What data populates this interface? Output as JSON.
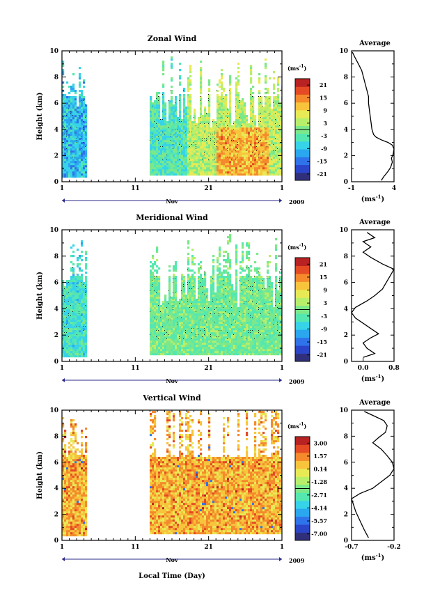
{
  "chart_data": [
    {
      "type": "heatmap",
      "title": "Zonal Wind",
      "xlabel": "",
      "ylabel": "Height (km)",
      "xlim": [
        1,
        31
      ],
      "ylim": [
        0,
        10
      ],
      "xticks": [
        "1",
        "11",
        "21",
        "1"
      ],
      "yticks": [
        "0",
        "2",
        "4",
        "6",
        "8",
        "10"
      ],
      "month_label": "Nov",
      "year_label": "2009",
      "data_gap_days": [
        4.2,
        12.7
      ],
      "colorbar": {
        "unit": "(ms",
        "unit_exp": "-1",
        "unit_close": ")",
        "ticks": [
          "21",
          "15",
          "9",
          "3",
          "-3",
          "-9",
          "-15",
          "-21"
        ],
        "min": -24,
        "max": 24
      },
      "average": {
        "title": "Average",
        "xlabel": "(ms",
        "xlabel_exp": "-1",
        "xlabel_close": ")",
        "xticks": [
          "-1",
          "4"
        ],
        "xlim": [
          -1,
          4
        ],
        "profile": [
          [
            2.5,
            0.1
          ],
          [
            2.8,
            0.4
          ],
          [
            3.3,
            0.8
          ],
          [
            3.6,
            1.1
          ],
          [
            3.8,
            1.5
          ],
          [
            3.7,
            1.8
          ],
          [
            3.9,
            2.1
          ],
          [
            4.0,
            2.5
          ],
          [
            3.8,
            2.8
          ],
          [
            3.3,
            3.0
          ],
          [
            2.5,
            3.2
          ],
          [
            1.9,
            3.4
          ],
          [
            1.6,
            3.6
          ],
          [
            1.4,
            4.0
          ],
          [
            1.3,
            4.5
          ],
          [
            1.2,
            5.0
          ],
          [
            1.1,
            5.5
          ],
          [
            1.0,
            6.0
          ],
          [
            1.0,
            6.5
          ],
          [
            0.8,
            7.0
          ],
          [
            0.6,
            7.5
          ],
          [
            0.4,
            8.0
          ],
          [
            0.2,
            8.5
          ],
          [
            -0.2,
            9.0
          ],
          [
            -0.6,
            9.5
          ],
          [
            -0.9,
            9.9
          ]
        ]
      }
    },
    {
      "type": "heatmap",
      "title": "Meridional Wind",
      "xlabel": "",
      "ylabel": "Height (km)",
      "xlim": [
        1,
        31
      ],
      "ylim": [
        0,
        10
      ],
      "xticks": [
        "1",
        "11",
        "21",
        "1"
      ],
      "yticks": [
        "0",
        "2",
        "4",
        "6",
        "8",
        "10"
      ],
      "month_label": "Nov",
      "year_label": "2009",
      "data_gap_days": [
        4.2,
        12.7
      ],
      "colorbar": {
        "unit": "(ms",
        "unit_exp": "-1",
        "unit_close": ")",
        "ticks": [
          "21",
          "15",
          "9",
          "3",
          "-3",
          "-9",
          "-15",
          "-21"
        ],
        "min": -24,
        "max": 24
      },
      "average": {
        "title": "Average",
        "xlabel": "(ms",
        "xlabel_exp": "-1",
        "xlabel_close": ")",
        "xticks": [
          "0.0",
          "0.8"
        ],
        "xlim": [
          -0.3,
          0.8
        ],
        "profile": [
          [
            0.0,
            0.3
          ],
          [
            0.3,
            0.6
          ],
          [
            0.1,
            1.0
          ],
          [
            0.0,
            1.4
          ],
          [
            0.2,
            1.8
          ],
          [
            0.4,
            2.1
          ],
          [
            0.2,
            2.5
          ],
          [
            0.0,
            2.9
          ],
          [
            -0.2,
            3.3
          ],
          [
            -0.3,
            3.7
          ],
          [
            -0.2,
            4.1
          ],
          [
            0.1,
            4.6
          ],
          [
            0.3,
            5.0
          ],
          [
            0.5,
            5.5
          ],
          [
            0.6,
            6.0
          ],
          [
            0.7,
            6.5
          ],
          [
            0.8,
            7.0
          ],
          [
            0.5,
            7.4
          ],
          [
            0.2,
            7.9
          ],
          [
            0.0,
            8.3
          ],
          [
            0.2,
            8.7
          ],
          [
            0.0,
            9.1
          ],
          [
            0.3,
            9.4
          ],
          [
            0.1,
            9.8
          ]
        ]
      }
    },
    {
      "type": "heatmap",
      "title": "Vertical Wind",
      "xlabel": "Local Time (Day)",
      "ylabel": "Height (km)",
      "xlim": [
        1,
        31
      ],
      "ylim": [
        0,
        10
      ],
      "xticks": [
        "1",
        "11",
        "21",
        "1"
      ],
      "yticks": [
        "0",
        "2",
        "4",
        "6",
        "8",
        "10"
      ],
      "month_label": "Nov",
      "year_label": "2009",
      "data_gap_days": [
        4.2,
        12.7
      ],
      "colorbar": {
        "unit": "(ms",
        "unit_exp": "-1",
        "unit_close": ")",
        "ticks": [
          "3.00",
          "1.57",
          "0.14",
          "-1.28",
          "-2.71",
          "-4.14",
          "-5.57",
          "-7.00"
        ],
        "min": -7.8,
        "max": 3.8
      },
      "average": {
        "title": "Average",
        "xlabel": "(ms",
        "xlabel_exp": "-1",
        "xlabel_close": ")",
        "xticks": [
          "-0.7",
          "-0.2"
        ],
        "xlim": [
          -0.7,
          -0.2
        ],
        "profile": [
          [
            -0.5,
            0.2
          ],
          [
            -0.55,
            0.8
          ],
          [
            -0.6,
            1.5
          ],
          [
            -0.65,
            2.2
          ],
          [
            -0.68,
            2.8
          ],
          [
            -0.7,
            3.2
          ],
          [
            -0.6,
            3.6
          ],
          [
            -0.45,
            4.0
          ],
          [
            -0.35,
            4.5
          ],
          [
            -0.25,
            5.0
          ],
          [
            -0.2,
            5.5
          ],
          [
            -0.22,
            6.0
          ],
          [
            -0.28,
            6.5
          ],
          [
            -0.35,
            7.0
          ],
          [
            -0.45,
            7.5
          ],
          [
            -0.38,
            7.9
          ],
          [
            -0.3,
            8.3
          ],
          [
            -0.28,
            8.8
          ],
          [
            -0.32,
            9.2
          ],
          [
            -0.45,
            9.6
          ],
          [
            -0.55,
            9.9
          ]
        ]
      }
    }
  ]
}
